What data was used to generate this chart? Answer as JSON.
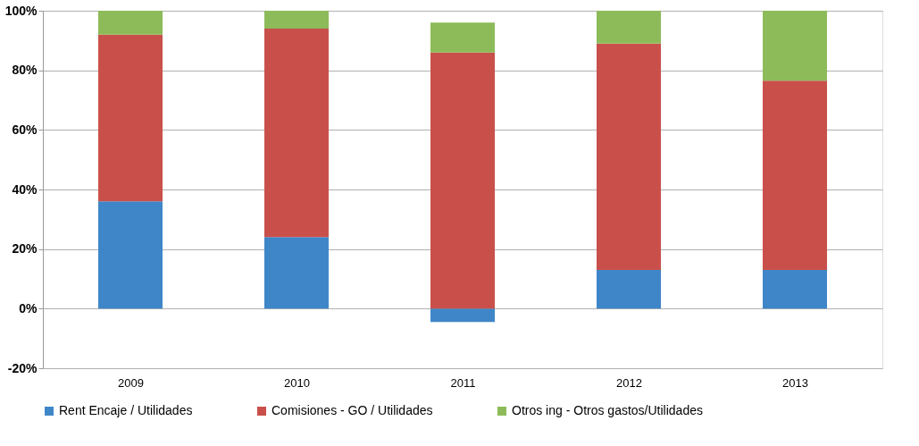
{
  "chart_data": {
    "type": "bar",
    "stacked": true,
    "categories": [
      "2009",
      "2010",
      "2011",
      "2012",
      "2013"
    ],
    "series": [
      {
        "name": "Rent Encaje / Utilidades",
        "color": "#3f86c8",
        "values": [
          36,
          24,
          -4.5,
          13,
          13
        ]
      },
      {
        "name": "Comisiones - GO / Utilidades",
        "color": "#c9504a",
        "values": [
          56,
          70,
          86,
          76,
          63.5
        ]
      },
      {
        "name": "Otros ing - Otros gastos/Utilidades",
        "color": "#8dbb5a",
        "values": [
          8,
          6,
          10,
          11,
          23.5
        ]
      }
    ],
    "ylim": [
      -20,
      100
    ],
    "yticks": [
      {
        "value": -20,
        "label": "-20%"
      },
      {
        "value": 0,
        "label": "0%"
      },
      {
        "value": 20,
        "label": "20%"
      },
      {
        "value": 40,
        "label": "40%"
      },
      {
        "value": 60,
        "label": "60%"
      },
      {
        "value": 80,
        "label": "80%"
      },
      {
        "value": 100,
        "label": "100%"
      }
    ],
    "grid": "y",
    "legend": "bottom"
  }
}
